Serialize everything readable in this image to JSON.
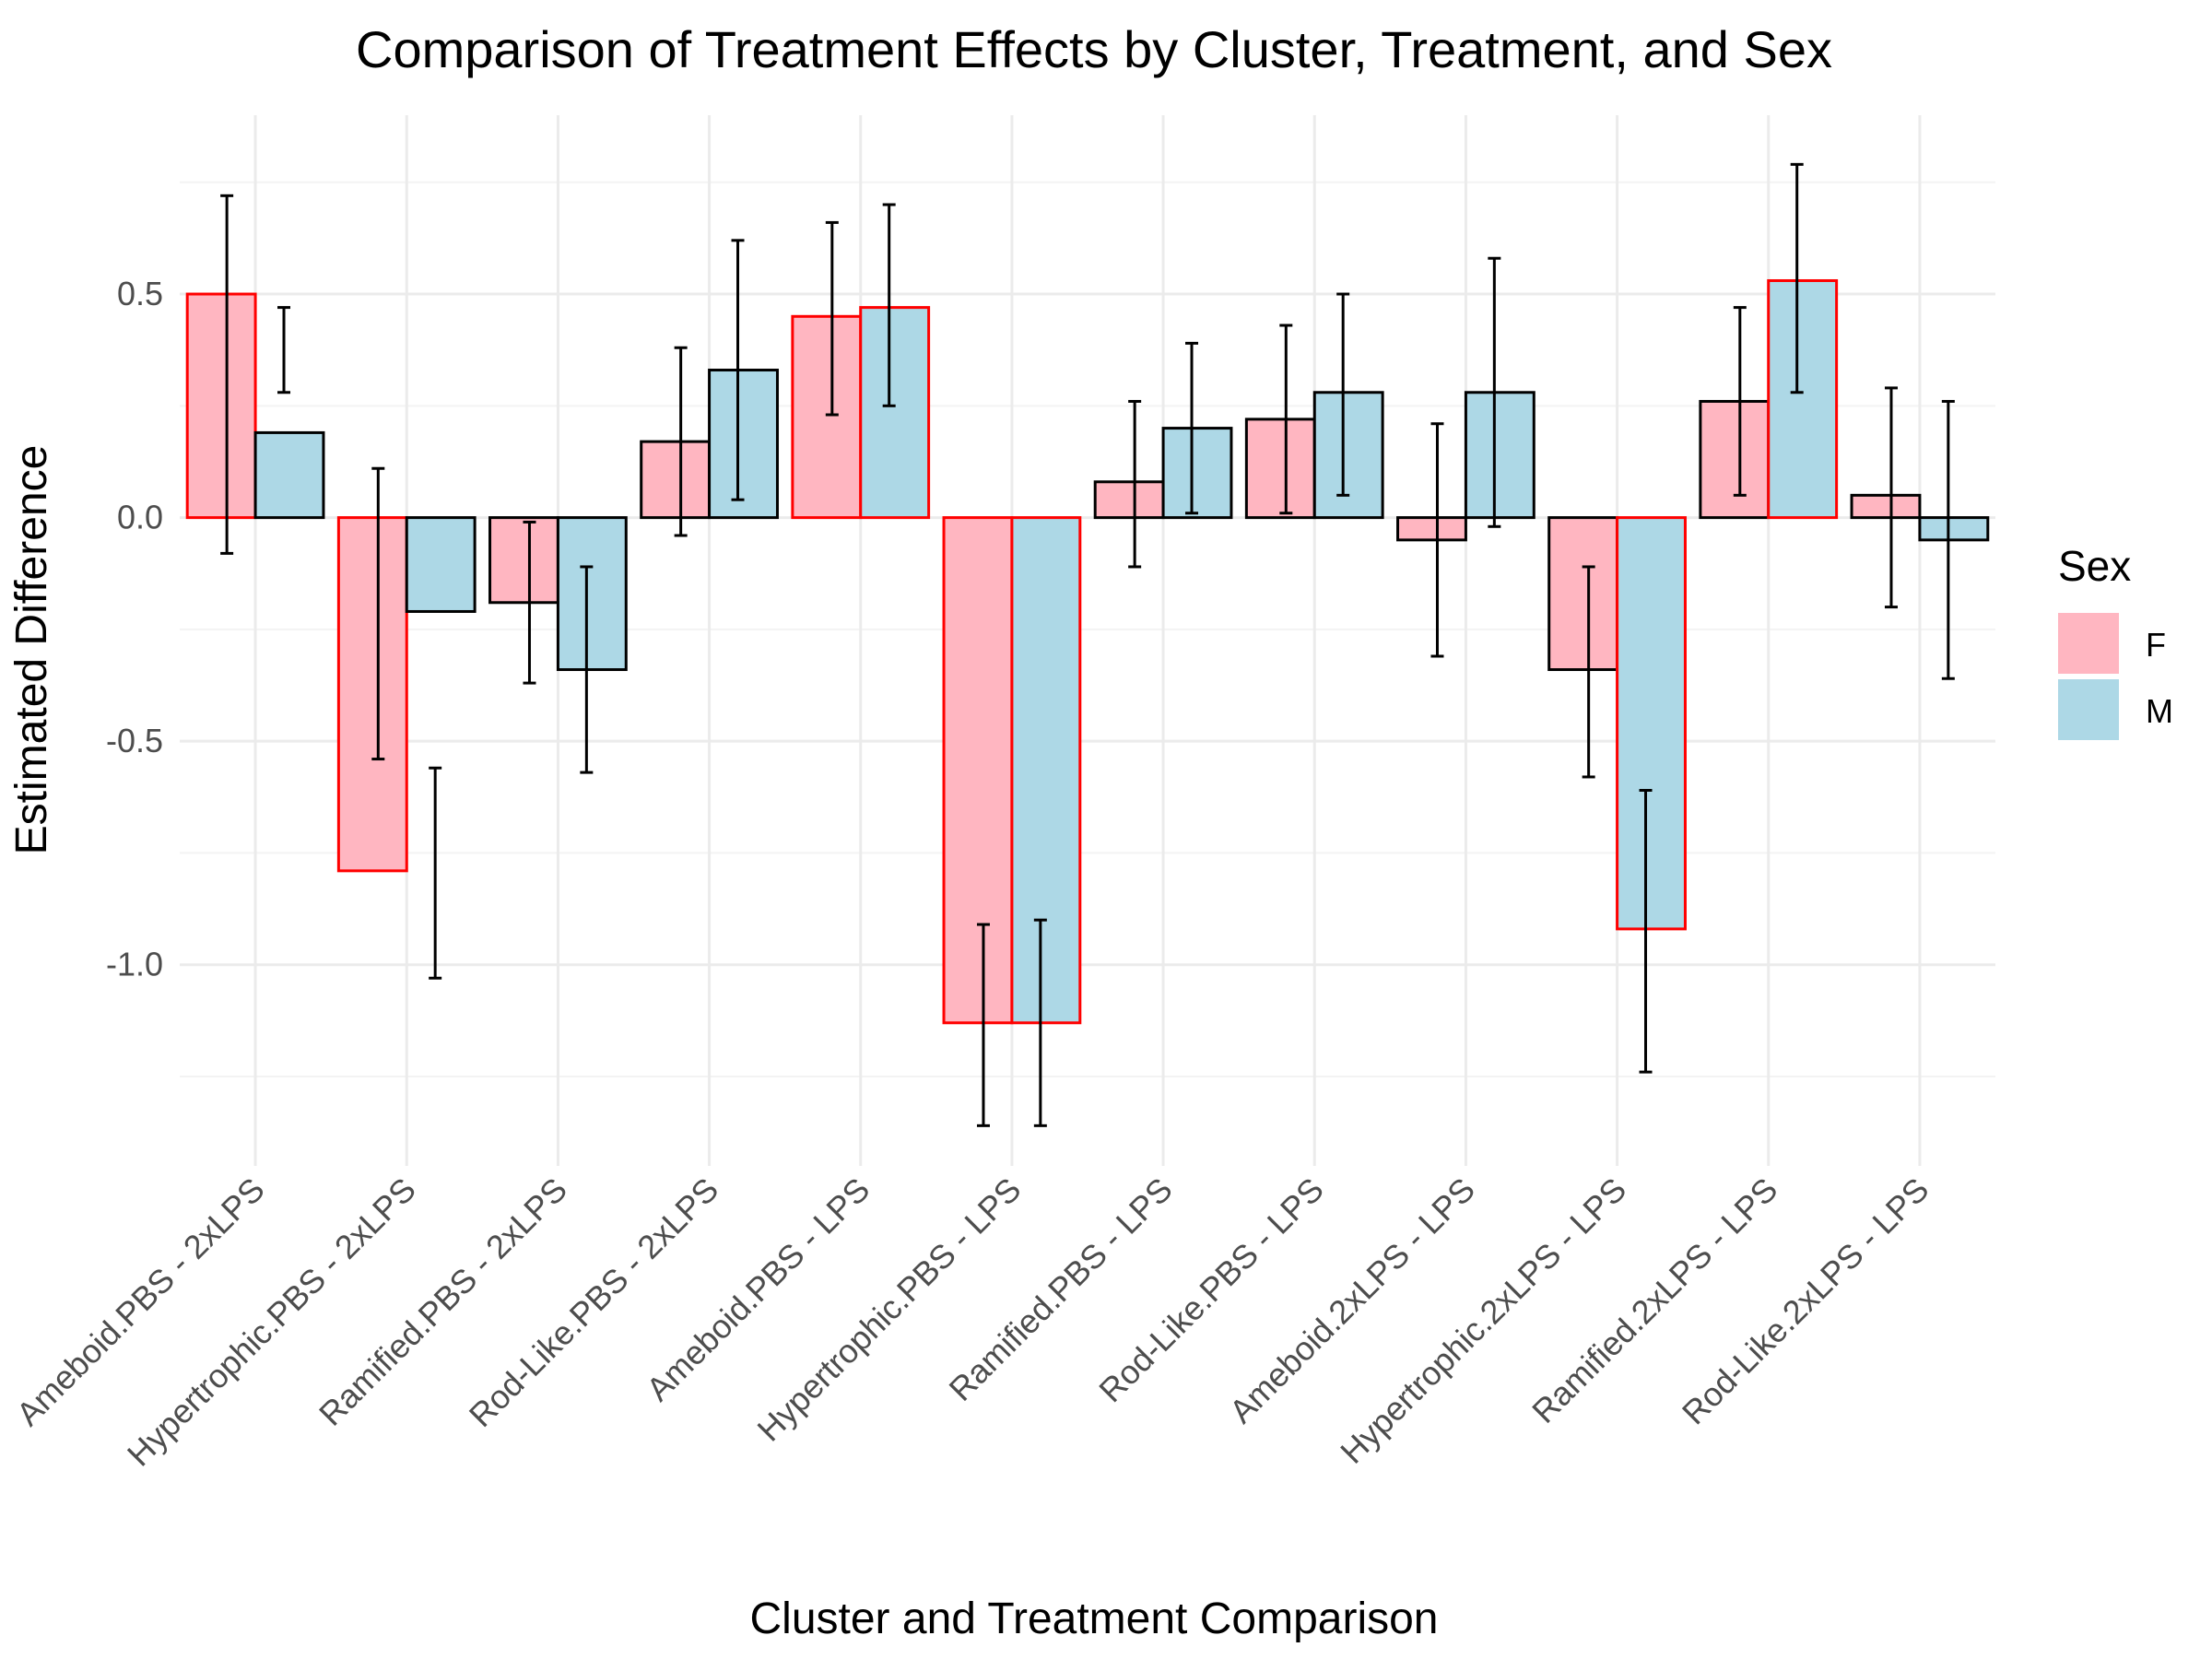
{
  "chart_data": {
    "type": "bar",
    "title": "Comparison of Treatment Effects by Cluster, Treatment, and Sex",
    "xlabel": "Cluster and Treatment Comparison",
    "ylabel": "Estimated Difference",
    "ylim": [
      -1.45,
      0.9
    ],
    "yticks": [
      0.5,
      0.0,
      -0.5,
      -1.0
    ],
    "ytick_labels": [
      "0.5",
      "0.0",
      "-0.5",
      "-1.0"
    ],
    "grid": true,
    "legend": {
      "title": "Sex",
      "position": "right"
    },
    "categories": [
      "Ameboid.PBS - 2xLPS",
      "Hypertrophic.PBS - 2xLPS",
      "Ramified.PBS - 2xLPS",
      "Rod-Like.PBS - 2xLPS",
      "Ameboid.PBS - LPS",
      "Hypertrophic.PBS - LPS",
      "Ramified.PBS - LPS",
      "Rod-Like.PBS - LPS",
      "Ameboid.2xLPS - LPS",
      "Hypertrophic.2xLPS - LPS",
      "Ramified.2xLPS - LPS",
      "Rod-Like.2xLPS - LPS"
    ],
    "series": [
      {
        "name": "F",
        "color": "#FFB6C1",
        "values": [
          0.5,
          -0.79,
          -0.19,
          0.17,
          0.45,
          -1.13,
          0.08,
          0.22,
          -0.05,
          -0.34,
          0.26,
          0.05
        ],
        "error_low": [
          -0.08,
          -0.54,
          -0.37,
          -0.04,
          0.23,
          -1.36,
          -0.11,
          0.01,
          -0.31,
          -0.58,
          0.05,
          -0.2
        ],
        "error_high": [
          0.72,
          0.11,
          -0.01,
          0.38,
          0.66,
          -0.91,
          0.26,
          0.43,
          0.21,
          -0.11,
          0.47,
          0.29
        ],
        "highlight": [
          true,
          true,
          false,
          false,
          true,
          true,
          false,
          false,
          false,
          false,
          false,
          false
        ]
      },
      {
        "name": "M",
        "color": "#ADD8E6",
        "values": [
          0.19,
          -0.21,
          -0.34,
          0.33,
          0.47,
          -1.13,
          0.2,
          0.28,
          0.28,
          -0.92,
          0.53,
          -0.05
        ],
        "error_low": [
          0.28,
          -1.03,
          -0.57,
          0.04,
          0.25,
          -1.36,
          0.01,
          0.05,
          -0.02,
          -1.24,
          0.28,
          -0.36
        ],
        "error_high": [
          0.47,
          -0.56,
          -0.11,
          0.62,
          0.7,
          -0.9,
          0.39,
          0.5,
          0.58,
          -0.61,
          0.79,
          0.26
        ],
        "highlight": [
          false,
          false,
          false,
          false,
          true,
          true,
          false,
          false,
          false,
          true,
          true,
          false
        ]
      }
    ],
    "highlight_color": "#FF0000",
    "outline_color": "#000000"
  }
}
